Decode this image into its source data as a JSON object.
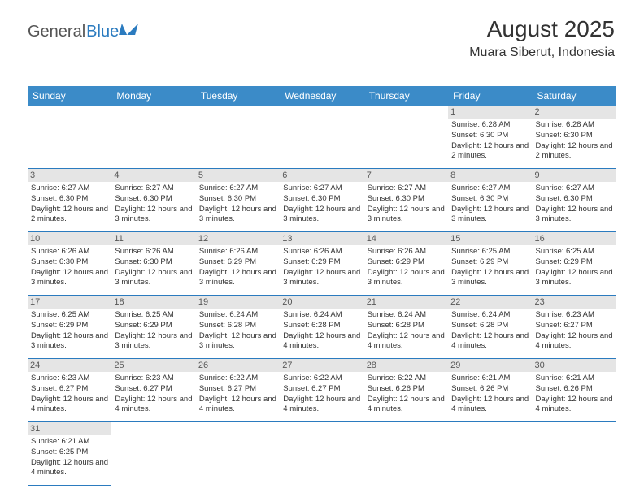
{
  "logo": {
    "general": "General",
    "blue": "Blue"
  },
  "header": {
    "title": "August 2025",
    "location": "Muara Siberut, Indonesia"
  },
  "calendar": {
    "day_labels": [
      "Sunday",
      "Monday",
      "Tuesday",
      "Wednesday",
      "Thursday",
      "Friday",
      "Saturday"
    ],
    "header_bg": "#3b8bc8",
    "header_fg": "#ffffff",
    "daynum_bg": "#e5e5e5",
    "border_color": "#2b7bbf",
    "first_day_index": 5,
    "days": [
      {
        "n": "1",
        "sunrise": "6:28 AM",
        "sunset": "6:30 PM",
        "daylight": "12 hours and 2 minutes."
      },
      {
        "n": "2",
        "sunrise": "6:28 AM",
        "sunset": "6:30 PM",
        "daylight": "12 hours and 2 minutes."
      },
      {
        "n": "3",
        "sunrise": "6:27 AM",
        "sunset": "6:30 PM",
        "daylight": "12 hours and 2 minutes."
      },
      {
        "n": "4",
        "sunrise": "6:27 AM",
        "sunset": "6:30 PM",
        "daylight": "12 hours and 3 minutes."
      },
      {
        "n": "5",
        "sunrise": "6:27 AM",
        "sunset": "6:30 PM",
        "daylight": "12 hours and 3 minutes."
      },
      {
        "n": "6",
        "sunrise": "6:27 AM",
        "sunset": "6:30 PM",
        "daylight": "12 hours and 3 minutes."
      },
      {
        "n": "7",
        "sunrise": "6:27 AM",
        "sunset": "6:30 PM",
        "daylight": "12 hours and 3 minutes."
      },
      {
        "n": "8",
        "sunrise": "6:27 AM",
        "sunset": "6:30 PM",
        "daylight": "12 hours and 3 minutes."
      },
      {
        "n": "9",
        "sunrise": "6:27 AM",
        "sunset": "6:30 PM",
        "daylight": "12 hours and 3 minutes."
      },
      {
        "n": "10",
        "sunrise": "6:26 AM",
        "sunset": "6:30 PM",
        "daylight": "12 hours and 3 minutes."
      },
      {
        "n": "11",
        "sunrise": "6:26 AM",
        "sunset": "6:30 PM",
        "daylight": "12 hours and 3 minutes."
      },
      {
        "n": "12",
        "sunrise": "6:26 AM",
        "sunset": "6:29 PM",
        "daylight": "12 hours and 3 minutes."
      },
      {
        "n": "13",
        "sunrise": "6:26 AM",
        "sunset": "6:29 PM",
        "daylight": "12 hours and 3 minutes."
      },
      {
        "n": "14",
        "sunrise": "6:26 AM",
        "sunset": "6:29 PM",
        "daylight": "12 hours and 3 minutes."
      },
      {
        "n": "15",
        "sunrise": "6:25 AM",
        "sunset": "6:29 PM",
        "daylight": "12 hours and 3 minutes."
      },
      {
        "n": "16",
        "sunrise": "6:25 AM",
        "sunset": "6:29 PM",
        "daylight": "12 hours and 3 minutes."
      },
      {
        "n": "17",
        "sunrise": "6:25 AM",
        "sunset": "6:29 PM",
        "daylight": "12 hours and 3 minutes."
      },
      {
        "n": "18",
        "sunrise": "6:25 AM",
        "sunset": "6:29 PM",
        "daylight": "12 hours and 3 minutes."
      },
      {
        "n": "19",
        "sunrise": "6:24 AM",
        "sunset": "6:28 PM",
        "daylight": "12 hours and 3 minutes."
      },
      {
        "n": "20",
        "sunrise": "6:24 AM",
        "sunset": "6:28 PM",
        "daylight": "12 hours and 4 minutes."
      },
      {
        "n": "21",
        "sunrise": "6:24 AM",
        "sunset": "6:28 PM",
        "daylight": "12 hours and 4 minutes."
      },
      {
        "n": "22",
        "sunrise": "6:24 AM",
        "sunset": "6:28 PM",
        "daylight": "12 hours and 4 minutes."
      },
      {
        "n": "23",
        "sunrise": "6:23 AM",
        "sunset": "6:27 PM",
        "daylight": "12 hours and 4 minutes."
      },
      {
        "n": "24",
        "sunrise": "6:23 AM",
        "sunset": "6:27 PM",
        "daylight": "12 hours and 4 minutes."
      },
      {
        "n": "25",
        "sunrise": "6:23 AM",
        "sunset": "6:27 PM",
        "daylight": "12 hours and 4 minutes."
      },
      {
        "n": "26",
        "sunrise": "6:22 AM",
        "sunset": "6:27 PM",
        "daylight": "12 hours and 4 minutes."
      },
      {
        "n": "27",
        "sunrise": "6:22 AM",
        "sunset": "6:27 PM",
        "daylight": "12 hours and 4 minutes."
      },
      {
        "n": "28",
        "sunrise": "6:22 AM",
        "sunset": "6:26 PM",
        "daylight": "12 hours and 4 minutes."
      },
      {
        "n": "29",
        "sunrise": "6:21 AM",
        "sunset": "6:26 PM",
        "daylight": "12 hours and 4 minutes."
      },
      {
        "n": "30",
        "sunrise": "6:21 AM",
        "sunset": "6:26 PM",
        "daylight": "12 hours and 4 minutes."
      },
      {
        "n": "31",
        "sunrise": "6:21 AM",
        "sunset": "6:25 PM",
        "daylight": "12 hours and 4 minutes."
      }
    ],
    "labels": {
      "sunrise": "Sunrise:",
      "sunset": "Sunset:",
      "daylight": "Daylight:"
    }
  }
}
